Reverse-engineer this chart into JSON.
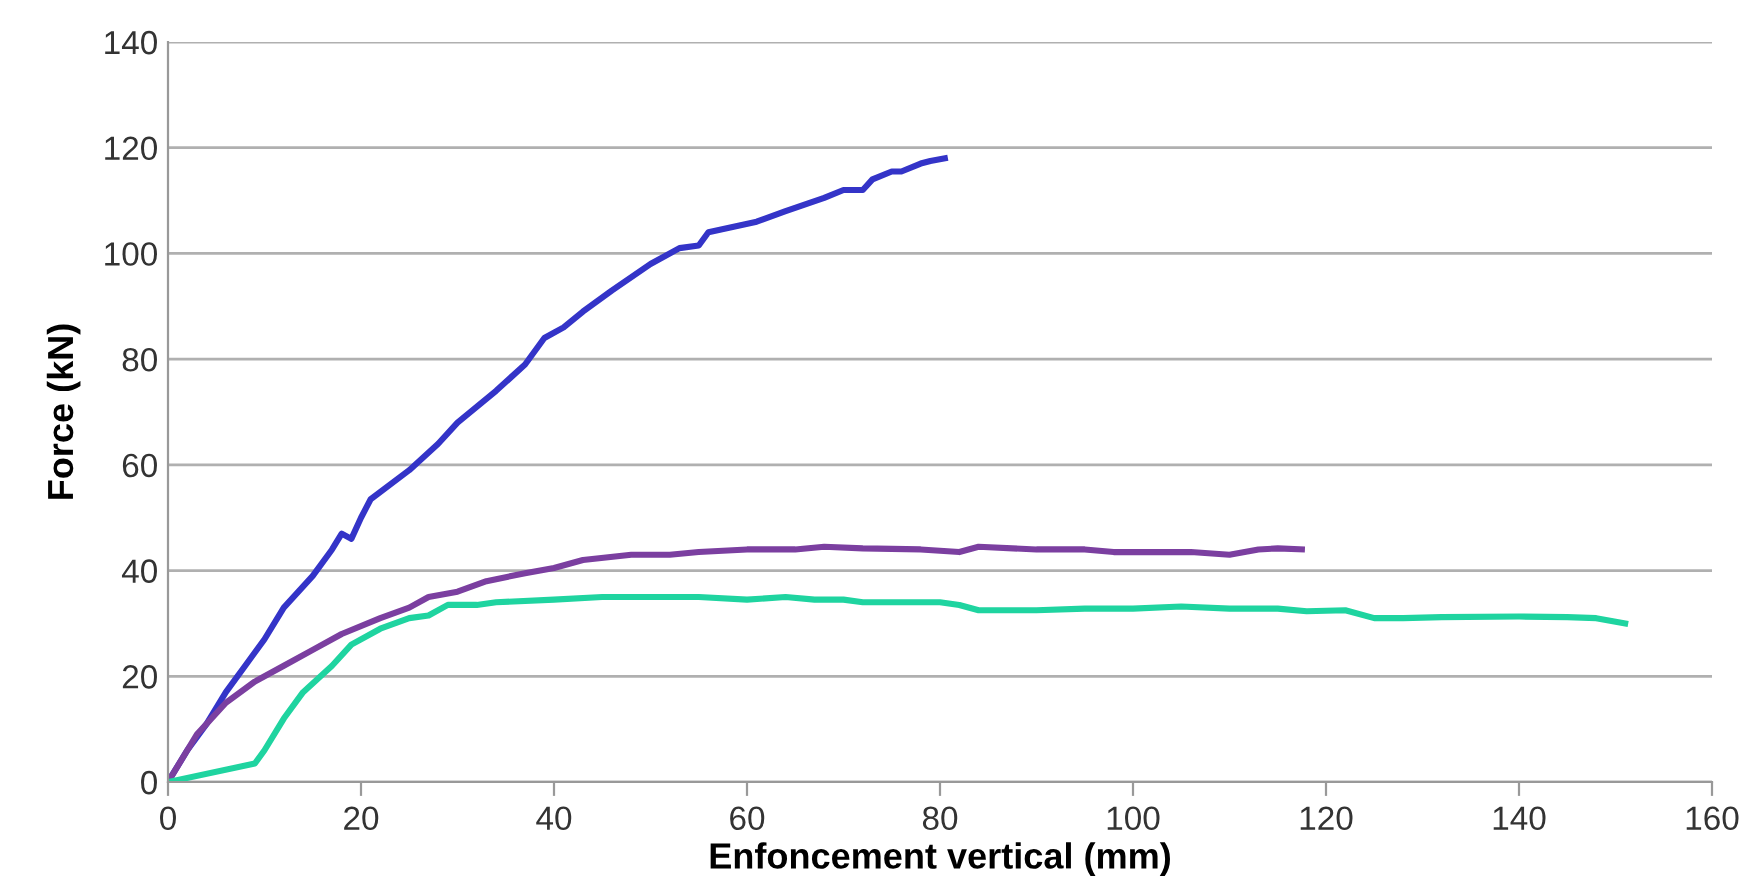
{
  "chart_data": {
    "type": "line",
    "xlabel": "Enfoncement vertical (mm)",
    "ylabel": "Force (kN)",
    "xlim": [
      0,
      160
    ],
    "xticks": [
      0,
      20,
      40,
      60,
      80,
      100,
      120,
      140,
      160
    ],
    "ylim": [
      0,
      140
    ],
    "yticks": [
      0,
      20,
      40,
      60,
      80,
      100,
      120,
      140
    ],
    "grid": "y",
    "marker": "none",
    "line_style": "solid",
    "series": [
      {
        "color": "#3434c8",
        "x": [
          0,
          2,
          4,
          6,
          8,
          10,
          12,
          15,
          17,
          18,
          19,
          20,
          21,
          25,
          28,
          30,
          34,
          37,
          39,
          41,
          43,
          46,
          50,
          53,
          55,
          56,
          61,
          64,
          68,
          70,
          72,
          73,
          75,
          76,
          78,
          79,
          80.5
        ],
        "values": [
          0,
          6,
          11,
          17,
          22,
          27,
          33,
          39,
          44,
          47,
          46,
          50,
          53.5,
          59,
          64,
          68,
          74,
          79,
          84,
          86,
          89,
          93,
          98,
          101,
          101.5,
          104,
          106,
          108,
          110.5,
          112,
          112,
          114,
          115.5,
          115.5,
          117,
          117.5,
          118
        ]
      },
      {
        "color": "#7b3fa0",
        "x": [
          0,
          3,
          6,
          9,
          12,
          15,
          18,
          22,
          25,
          27,
          30,
          33,
          37,
          40,
          43,
          48,
          52,
          55,
          60,
          65,
          68,
          72,
          78,
          82,
          84,
          90,
          95,
          98,
          102,
          106,
          110,
          113,
          115,
          117.5
        ],
        "values": [
          0,
          9,
          15,
          19,
          22,
          25,
          28,
          31,
          33,
          35,
          36,
          38,
          39.5,
          40.5,
          42,
          43,
          43,
          43.5,
          44,
          44,
          44.5,
          44.2,
          44,
          43.5,
          44.5,
          44,
          44,
          43.5,
          43.5,
          43.5,
          43,
          44,
          44.2,
          44
        ]
      },
      {
        "color": "#1fd4a0",
        "x": [
          0,
          9,
          10,
          12,
          14,
          17,
          19,
          22,
          25,
          27,
          29,
          32,
          34,
          40,
          45,
          50,
          55,
          60,
          64,
          67,
          70,
          72,
          80,
          82,
          84,
          90,
          95,
          100,
          105,
          110,
          115,
          118,
          122,
          125,
          128,
          132,
          140,
          145,
          148,
          151
        ],
        "values": [
          0,
          3.5,
          6,
          12,
          17,
          22,
          26,
          29,
          31,
          31.5,
          33.5,
          33.5,
          34,
          34.5,
          35,
          35,
          35,
          34.5,
          35,
          34.5,
          34.5,
          34,
          34,
          33.5,
          32.5,
          32.5,
          32.8,
          32.8,
          33.2,
          32.8,
          32.8,
          32.3,
          32.5,
          31,
          31,
          31.2,
          31.3,
          31.2,
          31,
          30
        ]
      }
    ]
  }
}
